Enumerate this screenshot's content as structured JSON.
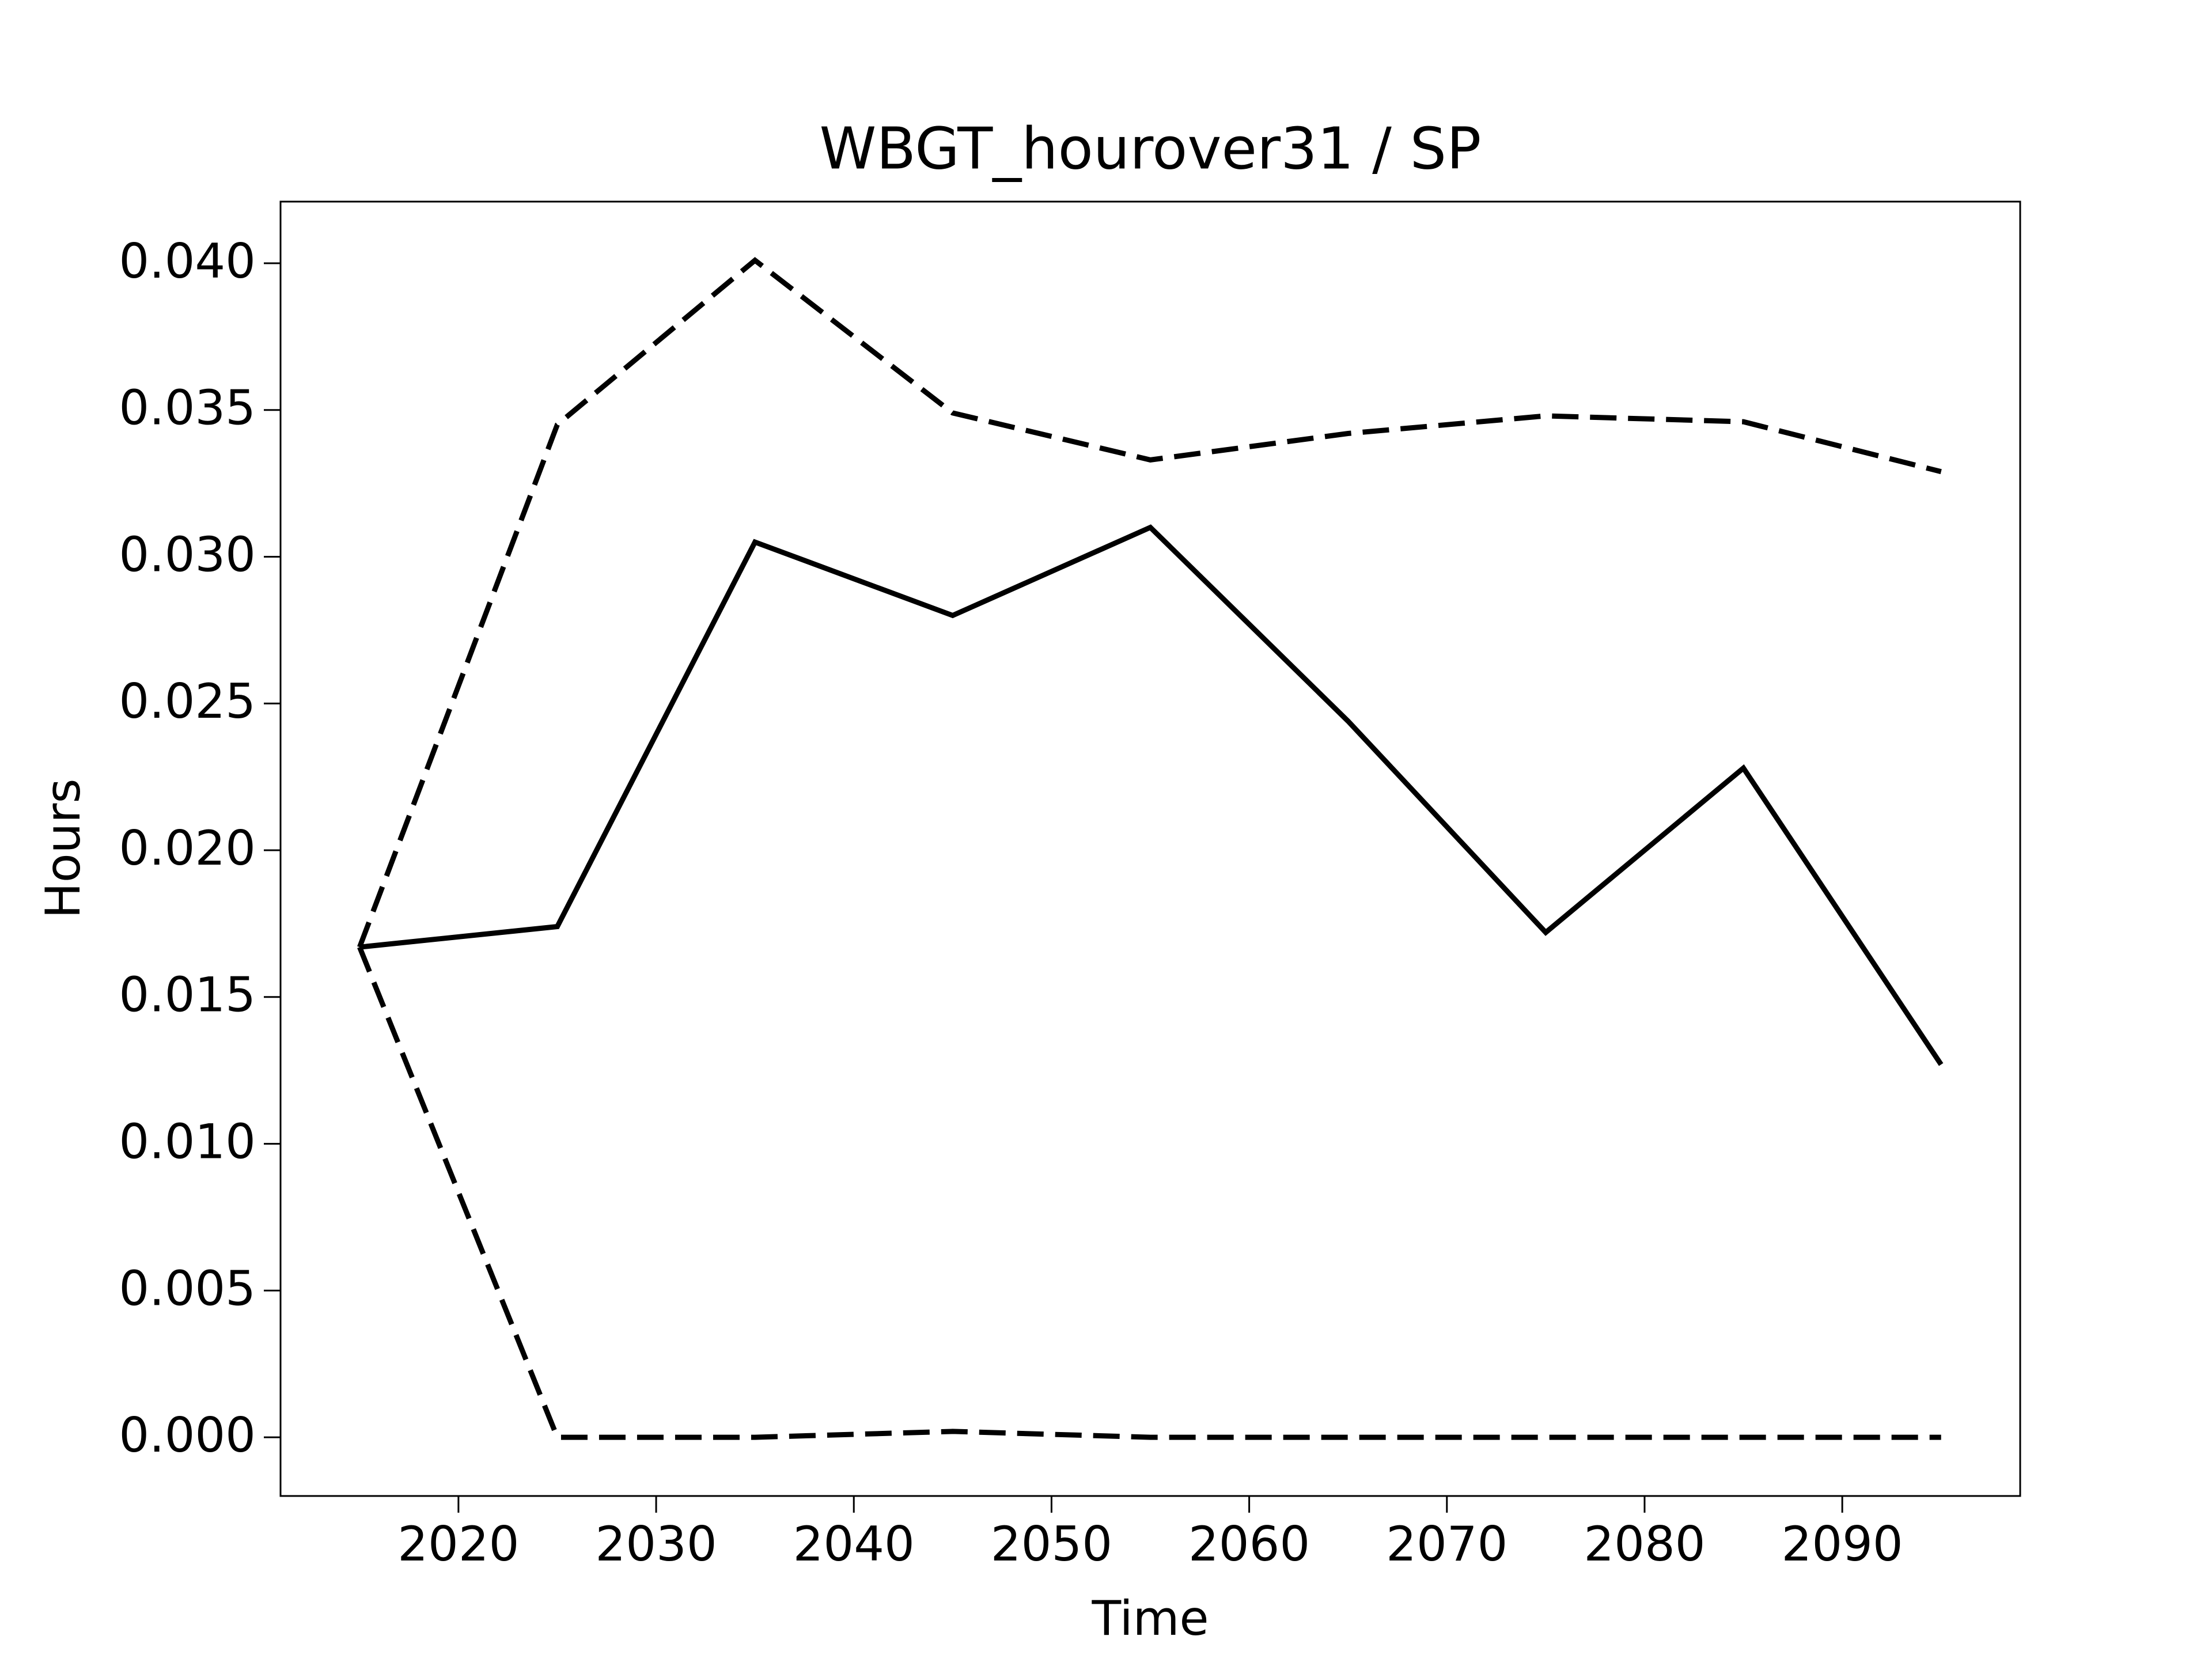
{
  "chart_data": {
    "type": "line",
    "title": "WBGT_hourover31 / SP",
    "x_label": "Time",
    "y_label": "Hours",
    "x": [
      2015,
      2025,
      2035,
      2045,
      2055,
      2065,
      2075,
      2085,
      2095
    ],
    "series": [
      {
        "color": "#000000",
        "style": "solid",
        "values": [
          0.0167,
          0.0174,
          0.0305,
          0.028,
          0.031,
          0.0244,
          0.0172,
          0.0228,
          0.0127
        ]
      },
      {
        "color": "#000000",
        "style": "dashed",
        "values": [
          0.0167,
          0.0345,
          0.0401,
          0.0349,
          0.0333,
          0.0342,
          0.0348,
          0.0346,
          0.0329
        ]
      },
      {
        "color": "#000000",
        "style": "dashed",
        "values": [
          0.0167,
          0.0,
          0.0,
          0.0002,
          0.0,
          0.0,
          0.0,
          0.0,
          0.0
        ]
      }
    ],
    "xlim": [
      2011,
      2099
    ],
    "xticks": [
      2020,
      2030,
      2040,
      2050,
      2060,
      2070,
      2080,
      2090
    ],
    "ylim": [
      -0.002,
      0.0421
    ],
    "yticks": [
      {
        "value": 0,
        "label": "0.000"
      },
      {
        "value": 0.005,
        "label": "0.005"
      },
      {
        "value": 0.01,
        "label": "0.010"
      },
      {
        "value": 0.015,
        "label": "0.015"
      },
      {
        "value": 0.02,
        "label": "0.020"
      },
      {
        "value": 0.025,
        "label": "0.025"
      },
      {
        "value": 0.03,
        "label": "0.030"
      },
      {
        "value": 0.035,
        "label": "0.035"
      },
      {
        "value": 0.04,
        "label": "0.040"
      }
    ],
    "grid": false
  }
}
